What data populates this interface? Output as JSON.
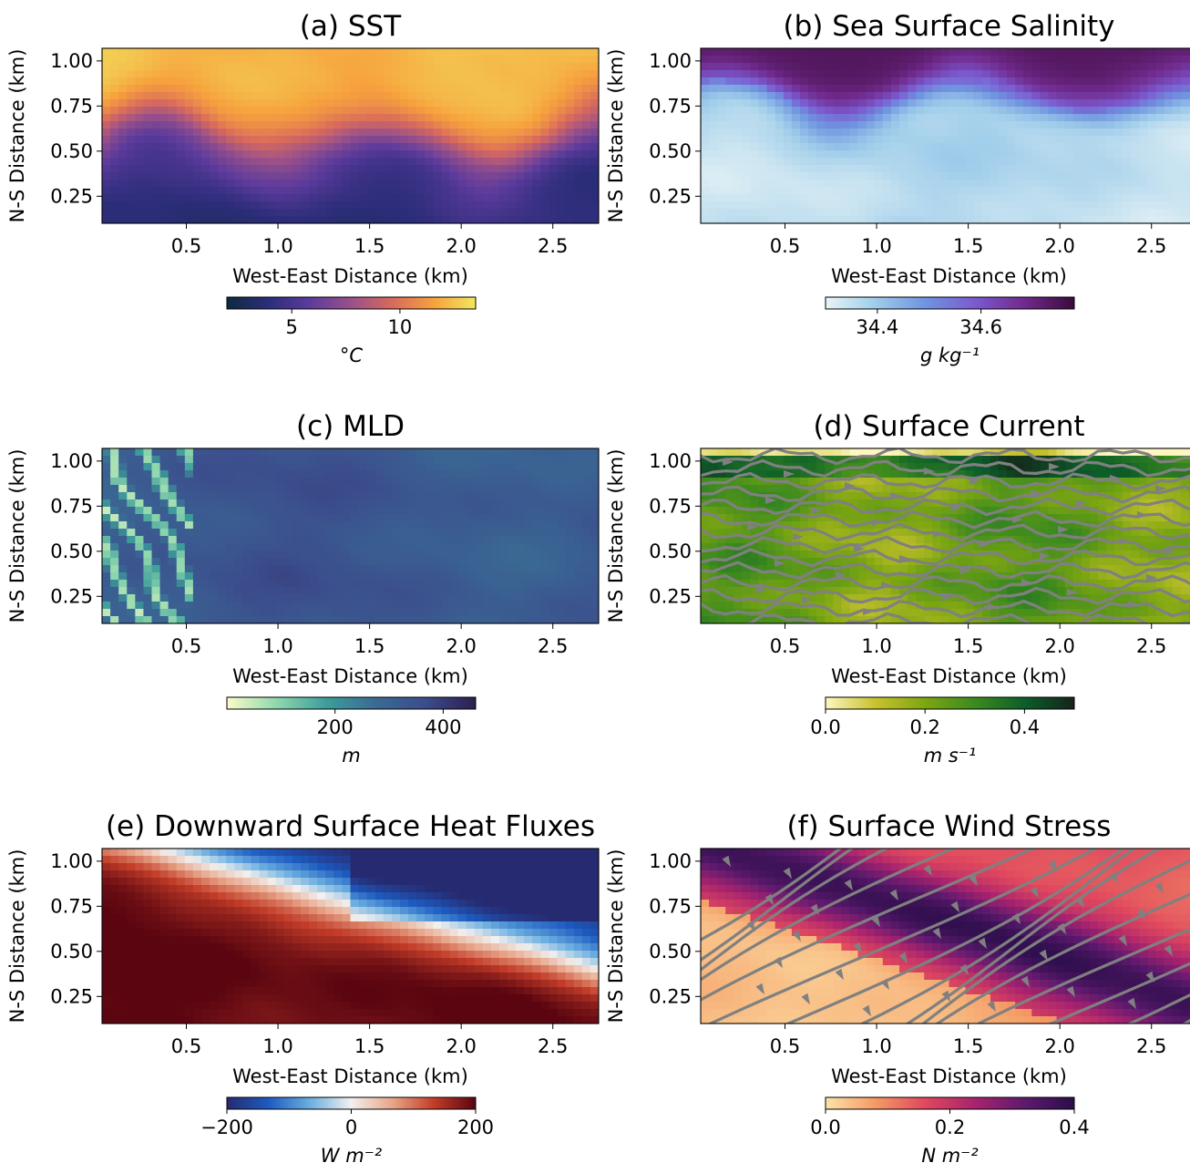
{
  "chart_data": [
    {
      "type": "heatmap",
      "title": "(a) SST",
      "xlabel": "West-East Distance (km)",
      "ylabel": "N-S Distance (km)",
      "xlim": [
        0.04,
        2.75
      ],
      "ylim": [
        0.1,
        1.07
      ],
      "xticks": [
        {
          "v": 0.5,
          "label": "0.5"
        },
        {
          "v": 1.0,
          "label": "1.0"
        },
        {
          "v": 1.5,
          "label": "1.5"
        },
        {
          "v": 2.0,
          "label": "2.0"
        },
        {
          "v": 2.5,
          "label": "2.5"
        }
      ],
      "yticks": [
        {
          "v": 0.25,
          "label": "0.25"
        },
        {
          "v": 0.5,
          "label": "0.50"
        },
        {
          "v": 0.75,
          "label": "0.75"
        },
        {
          "v": 1.0,
          "label": "1.00"
        }
      ],
      "colorbar": {
        "range": [
          2,
          13.5
        ],
        "ticks": [
          {
            "v": 5,
            "label": "5"
          },
          {
            "v": 10,
            "label": "10"
          }
        ],
        "label": "°C",
        "colormap": [
          "#0d2b3e",
          "#2c2d7a",
          "#5c3b9c",
          "#99508a",
          "#d96a5c",
          "#f7a23d",
          "#f0e860"
        ]
      },
      "field": "Cold water (2–4 °C) in the south, warm water (11–13 °C) in the north, with a wavy eddying front near 0.5–0.75 km"
    },
    {
      "type": "heatmap",
      "title": "(b) Sea Surface Salinity",
      "xlabel": "West-East Distance (km)",
      "ylabel": "N-S Distance (km)",
      "xlim": [
        0.04,
        2.75
      ],
      "ylim": [
        0.1,
        1.07
      ],
      "xticks": [
        {
          "v": 0.5,
          "label": "0.5"
        },
        {
          "v": 1.0,
          "label": "1.0"
        },
        {
          "v": 1.5,
          "label": "1.5"
        },
        {
          "v": 2.0,
          "label": "2.0"
        },
        {
          "v": 2.5,
          "label": "2.5"
        }
      ],
      "yticks": [
        {
          "v": 0.25,
          "label": "0.25"
        },
        {
          "v": 0.5,
          "label": "0.50"
        },
        {
          "v": 0.75,
          "label": "0.75"
        },
        {
          "v": 1.0,
          "label": "1.00"
        }
      ],
      "colorbar": {
        "range": [
          34.3,
          34.78
        ],
        "ticks": [
          {
            "v": 34.4,
            "label": "34.4"
          },
          {
            "v": 34.6,
            "label": "34.6"
          }
        ],
        "label": "g kg⁻¹",
        "colormap": [
          "#e8f4f6",
          "#9fcdea",
          "#6f94e0",
          "#7b5ad0",
          "#702a8c",
          "#3c0a3c"
        ]
      },
      "field": "Fresh water in the south, saltier water in the north"
    },
    {
      "type": "heatmap",
      "title": "(c) MLD",
      "xlabel": "West-East Distance (km)",
      "ylabel": "N-S Distance (km)",
      "xlim": [
        0.04,
        2.75
      ],
      "ylim": [
        0.1,
        1.07
      ],
      "xticks": [
        {
          "v": 0.5,
          "label": "0.5"
        },
        {
          "v": 1.0,
          "label": "1.0"
        },
        {
          "v": 1.5,
          "label": "1.5"
        },
        {
          "v": 2.0,
          "label": "2.0"
        },
        {
          "v": 2.5,
          "label": "2.5"
        }
      ],
      "yticks": [
        {
          "v": 0.25,
          "label": "0.25"
        },
        {
          "v": 0.5,
          "label": "0.50"
        },
        {
          "v": 0.75,
          "label": "0.75"
        },
        {
          "v": 1.0,
          "label": "1.00"
        }
      ],
      "colorbar": {
        "range": [
          0,
          460
        ],
        "ticks": [
          {
            "v": 200,
            "label": "200"
          },
          {
            "v": 400,
            "label": "400"
          }
        ],
        "label": "m",
        "colormap": [
          "#fbfbc8",
          "#8fd7ae",
          "#3d9d9a",
          "#3a6a94",
          "#3b4c8c",
          "#2c1f4e"
        ]
      },
      "field": "Mostly deep mixed layer (300–400 m) with shallow filaments on the western edge"
    },
    {
      "type": "heatmap",
      "title": "(d) Surface Current",
      "xlabel": "West-East Distance (km)",
      "ylabel": "N-S Distance (km)",
      "xlim": [
        0.04,
        2.75
      ],
      "ylim": [
        0.1,
        1.07
      ],
      "xticks": [
        {
          "v": 0.5,
          "label": "0.5"
        },
        {
          "v": 1.0,
          "label": "1.0"
        },
        {
          "v": 1.5,
          "label": "1.5"
        },
        {
          "v": 2.0,
          "label": "2.0"
        },
        {
          "v": 2.5,
          "label": "2.5"
        }
      ],
      "yticks": [
        {
          "v": 0.25,
          "label": "0.25"
        },
        {
          "v": 0.5,
          "label": "0.50"
        },
        {
          "v": 0.75,
          "label": "0.75"
        },
        {
          "v": 1.0,
          "label": "1.00"
        }
      ],
      "colorbar": {
        "range": [
          0,
          0.5
        ],
        "ticks": [
          {
            "v": 0.0,
            "label": "0.0"
          },
          {
            "v": 0.2,
            "label": "0.2"
          },
          {
            "v": 0.4,
            "label": "0.4"
          }
        ],
        "label": "m s⁻¹",
        "colormap": [
          "#fdf6c0",
          "#c8c22e",
          "#7da612",
          "#3c8a1e",
          "#0d5e2a",
          "#14231a"
        ]
      },
      "streamlines": {
        "color": "#808080",
        "direction": "eastward"
      },
      "field": "Speeds of roughly 0.1–0.4 m/s, generally eastward, with a faster band near 0.8 km"
    },
    {
      "type": "heatmap",
      "title": "(e) Downward Surface Heat Fluxes",
      "xlabel": "West-East Distance (km)",
      "ylabel": "N-S Distance (km)",
      "xlim": [
        0.04,
        2.75
      ],
      "ylim": [
        0.1,
        1.07
      ],
      "xticks": [
        {
          "v": 0.5,
          "label": "0.5"
        },
        {
          "v": 1.0,
          "label": "1.0"
        },
        {
          "v": 1.5,
          "label": "1.5"
        },
        {
          "v": 2.0,
          "label": "2.0"
        },
        {
          "v": 2.5,
          "label": "2.5"
        }
      ],
      "yticks": [
        {
          "v": 0.25,
          "label": "0.25"
        },
        {
          "v": 0.5,
          "label": "0.50"
        },
        {
          "v": 0.75,
          "label": "0.75"
        },
        {
          "v": 1.0,
          "label": "1.00"
        }
      ],
      "colorbar": {
        "range": [
          -200,
          200
        ],
        "ticks": [
          {
            "v": -200,
            "label": "−200"
          },
          {
            "v": 0,
            "label": "0"
          },
          {
            "v": 200,
            "label": "200"
          }
        ],
        "label": "W m⁻²",
        "colormap": [
          "#262a70",
          "#1d5bc0",
          "#6aaee0",
          "#f2f0ee",
          "#e8a488",
          "#c23c28",
          "#5a0510"
        ]
      },
      "field": "Strong positive flux (~200 W m⁻²) in the northwest, negative flux (~−100 W m⁻²) in the northeast"
    },
    {
      "type": "heatmap",
      "title": "(f) Surface Wind Stress",
      "xlabel": "West-East Distance (km)",
      "ylabel": "N-S Distance (km)",
      "xlim": [
        0.04,
        2.75
      ],
      "ylim": [
        0.1,
        1.07
      ],
      "xticks": [
        {
          "v": 0.5,
          "label": "0.5"
        },
        {
          "v": 1.0,
          "label": "1.0"
        },
        {
          "v": 1.5,
          "label": "1.5"
        },
        {
          "v": 2.0,
          "label": "2.0"
        },
        {
          "v": 2.5,
          "label": "2.5"
        }
      ],
      "yticks": [
        {
          "v": 0.25,
          "label": "0.25"
        },
        {
          "v": 0.5,
          "label": "0.50"
        },
        {
          "v": 0.75,
          "label": "0.75"
        },
        {
          "v": 1.0,
          "label": "1.00"
        }
      ],
      "colorbar": {
        "range": [
          0,
          0.4
        ],
        "ticks": [
          {
            "v": 0.0,
            "label": "0.0"
          },
          {
            "v": 0.2,
            "label": "0.2"
          },
          {
            "v": 0.4,
            "label": "0.4"
          }
        ],
        "label": "N m⁻²",
        "colormap": [
          "#fbe3a8",
          "#f59a64",
          "#e0485e",
          "#a8236e",
          "#5e1a6e",
          "#2a0e4a"
        ]
      },
      "streamlines": {
        "color": "#808080",
        "direction": "southeastward"
      },
      "field": "Weak stress in the southwest and northeast, strong stress (~0.4 N m⁻²) along a diagonal band"
    }
  ]
}
